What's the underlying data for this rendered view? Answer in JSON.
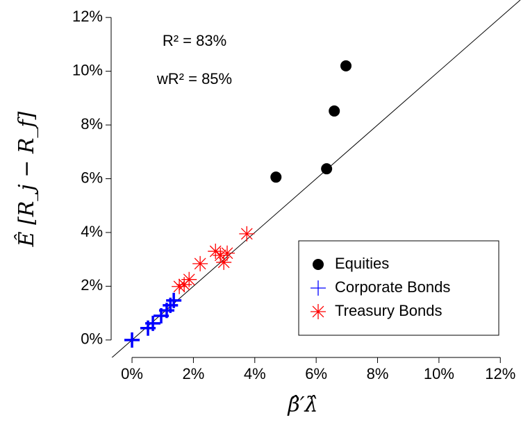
{
  "chart_data": {
    "type": "scatter",
    "x_label": "β̂′λ̂",
    "y_label": "Ê [R_j − R_f]",
    "annotations": [
      "R² = 83%",
      "wR² = 85%"
    ],
    "xlim": [
      -0.68,
      12.56
    ],
    "ylim": [
      -0.65,
      12.65
    ],
    "xticks": [
      {
        "value": 0,
        "label": "0%"
      },
      {
        "value": 2,
        "label": "2%"
      },
      {
        "value": 4,
        "label": "4%"
      },
      {
        "value": 6,
        "label": "6%"
      },
      {
        "value": 8,
        "label": "8%"
      },
      {
        "value": 10,
        "label": "10%"
      },
      {
        "value": 12,
        "label": "12%"
      }
    ],
    "yticks": [
      {
        "value": 0,
        "label": "0%"
      },
      {
        "value": 2,
        "label": "2%"
      },
      {
        "value": 4,
        "label": "4%"
      },
      {
        "value": 6,
        "label": "6%"
      },
      {
        "value": 8,
        "label": "8%"
      },
      {
        "value": 10,
        "label": "10%"
      },
      {
        "value": 12,
        "label": "12%"
      }
    ],
    "legend": "bottom-right",
    "series": [
      {
        "name": "Equities",
        "color": "#000000",
        "marker": "circle",
        "x": [
          4.69,
          6.59,
          6.34,
          6.97
        ],
        "values": [
          6.06,
          8.52,
          6.37,
          10.2
        ]
      },
      {
        "name": "Corporate Bonds",
        "color": "#0000ff",
        "marker": "plus",
        "x": [
          0,
          0.52,
          0.68,
          0.95,
          1.13,
          1.25,
          1.36
        ],
        "values": [
          0,
          0.44,
          0.62,
          0.9,
          1.1,
          1.29,
          1.47
        ]
      },
      {
        "name": "Treasury Bonds",
        "color": "#ff0000",
        "marker": "asterisk",
        "x": [
          1.54,
          1.7,
          1.86,
          2.22,
          2.72,
          2.88,
          2.99,
          3.1,
          3.74
        ],
        "values": [
          1.99,
          2.06,
          2.25,
          2.84,
          3.3,
          3.15,
          2.89,
          3.23,
          3.95
        ]
      }
    ]
  }
}
